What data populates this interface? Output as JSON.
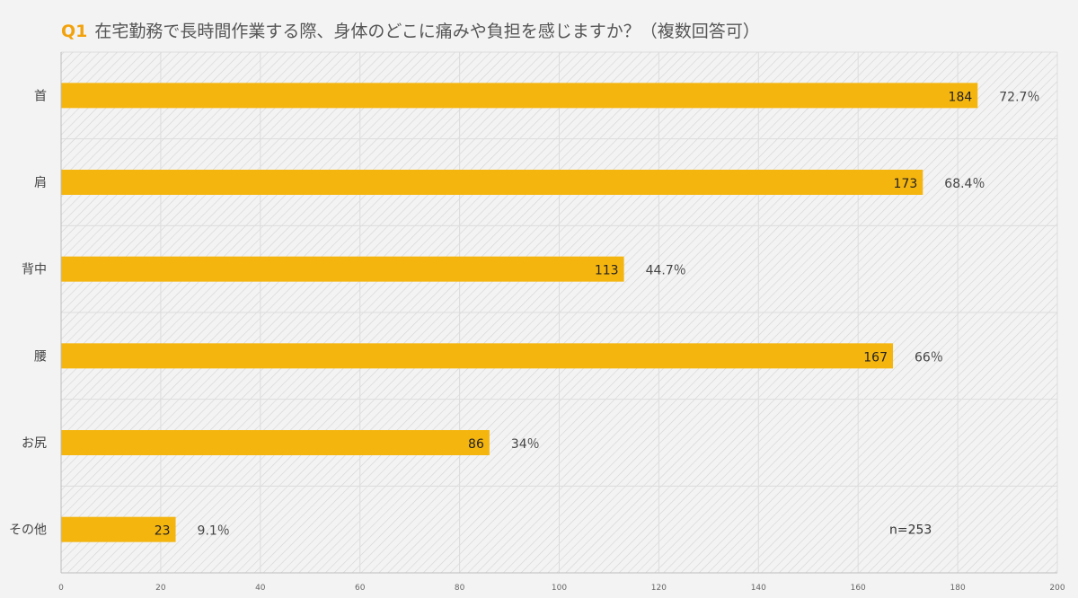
{
  "title": {
    "prefix": "Q1",
    "text": "在宅勤務で長時間作業する際、身体のどこに痛みや負担を感じますか？（複数回答可）"
  },
  "colors": {
    "bar": "#f5b50f",
    "prefix": "#f2a20d"
  },
  "chart_data": {
    "type": "bar",
    "orientation": "horizontal",
    "categories": [
      "首",
      "肩",
      "背中",
      "腰",
      "お尻",
      "その他"
    ],
    "values": [
      184,
      173,
      113,
      167,
      86,
      23
    ],
    "percent_labels": [
      "72.7％",
      "68.4％",
      "44.7％",
      "66％",
      "34％",
      "9.1％"
    ],
    "xlim": [
      0,
      200
    ],
    "xticks": [
      0,
      20,
      40,
      60,
      80,
      100,
      120,
      140,
      160,
      180,
      200
    ],
    "note": "n=253",
    "grid": true
  }
}
